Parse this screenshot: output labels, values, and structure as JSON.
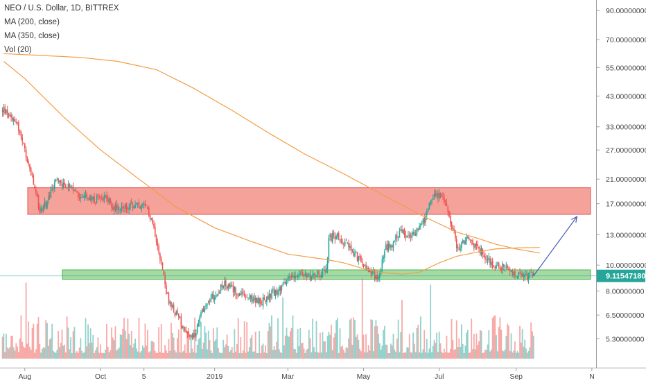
{
  "legend": {
    "title": "NEO / U.S. Dollar, 1D, BITTREX",
    "ma200": "MA (200, close)",
    "ma350": "MA (350, close)",
    "vol": "Vol (20)"
  },
  "colors": {
    "up": "#26a69a",
    "down": "#ef5350",
    "ma": "#f39c45",
    "resistance_fill": "#f28b82",
    "support_fill": "#8fd18b",
    "arrow": "#4a5bb3",
    "last_price_bg": "#26a69a"
  },
  "chart_data": {
    "type": "candlestick",
    "symbol": "NEO / U.S. Dollar",
    "timeframe": "1D",
    "exchange": "BITTREX",
    "y_scale": "log",
    "ylim": [
      4.6,
      95
    ],
    "price_ticks": [
      "90.00000000",
      "70.00000000",
      "55.00000000",
      "43.00000000",
      "33.00000000",
      "27.00000000",
      "21.00000000",
      "17.00000000",
      "13.00000000",
      "10.00000000",
      "8.00000000",
      "6.50000000",
      "5.30000000"
    ],
    "date_ticks": [
      "Aug",
      "Oct",
      "5",
      "2019",
      "Mar",
      "May",
      "Jul",
      "Sep",
      "N"
    ],
    "last_price": "9.11547180",
    "zones": [
      {
        "name": "resistance",
        "low": 15.5,
        "high": 19.5
      },
      {
        "name": "support",
        "low": 8.85,
        "high": 9.6
      }
    ],
    "anchor_closes": [
      [
        "2018-07-15",
        38
      ],
      [
        "2018-07-25",
        35
      ],
      [
        "2018-08-06",
        22
      ],
      [
        "2018-08-13",
        16
      ],
      [
        "2018-08-18",
        17
      ],
      [
        "2018-08-27",
        21
      ],
      [
        "2018-09-08",
        19
      ],
      [
        "2018-09-25",
        17.5
      ],
      [
        "2018-10-05",
        18.2
      ],
      [
        "2018-10-11",
        16.5
      ],
      [
        "2018-10-20",
        16.4
      ],
      [
        "2018-10-31",
        16.7
      ],
      [
        "2018-11-08",
        16.2
      ],
      [
        "2018-11-12",
        14.5
      ],
      [
        "2018-11-17",
        11.5
      ],
      [
        "2018-11-22",
        8.5
      ],
      [
        "2018-11-25",
        7.2
      ],
      [
        "2018-12-06",
        6.0
      ],
      [
        "2018-12-14",
        5.2
      ],
      [
        "2018-12-22",
        6.8
      ],
      [
        "2018-12-29",
        7.5
      ],
      [
        "2019-01-08",
        8.5
      ],
      [
        "2019-01-28",
        7.5
      ],
      [
        "2019-02-08",
        7.3
      ],
      [
        "2019-02-24",
        8.3
      ],
      [
        "2019-03-05",
        9.3
      ],
      [
        "2019-03-19",
        9.1
      ],
      [
        "2019-04-01",
        9.5
      ],
      [
        "2019-04-03",
        12.5
      ],
      [
        "2019-04-10",
        13.0
      ],
      [
        "2019-04-21",
        11.5
      ],
      [
        "2019-04-27",
        10.5
      ],
      [
        "2019-05-08",
        9.3
      ],
      [
        "2019-05-13",
        9.0
      ],
      [
        "2019-05-18",
        11.5
      ],
      [
        "2019-05-24",
        12.0
      ],
      [
        "2019-06-01",
        13.5
      ],
      [
        "2019-06-05",
        12.5
      ],
      [
        "2019-06-12",
        13.5
      ],
      [
        "2019-06-20",
        15.0
      ],
      [
        "2019-06-25",
        18.0
      ],
      [
        "2019-07-02",
        18.5
      ],
      [
        "2019-07-08",
        16.0
      ],
      [
        "2019-07-16",
        11.5
      ],
      [
        "2019-07-23",
        12.5
      ],
      [
        "2019-07-31",
        11.7
      ],
      [
        "2019-08-06",
        11.0
      ],
      [
        "2019-08-13",
        10.0
      ],
      [
        "2019-08-22",
        9.8
      ],
      [
        "2019-08-30",
        9.2
      ],
      [
        "2019-09-06",
        9.0
      ],
      [
        "2019-09-15",
        9.12
      ]
    ],
    "ma200": [
      [
        "2018-07-15",
        58
      ],
      [
        "2018-08-01",
        50
      ],
      [
        "2018-09-01",
        36
      ],
      [
        "2018-10-01",
        27
      ],
      [
        "2018-11-01",
        21
      ],
      [
        "2018-12-01",
        16.5
      ],
      [
        "2019-01-01",
        13.8
      ],
      [
        "2019-02-01",
        12.2
      ],
      [
        "2019-03-01",
        11.0
      ],
      [
        "2019-04-01",
        10.5
      ],
      [
        "2019-04-15",
        10.2
      ],
      [
        "2019-05-01",
        9.7
      ],
      [
        "2019-05-15",
        9.4
      ],
      [
        "2019-06-01",
        9.25
      ],
      [
        "2019-06-15",
        9.4
      ],
      [
        "2019-07-01",
        10.2
      ],
      [
        "2019-07-15",
        10.8
      ],
      [
        "2019-08-01",
        11.2
      ],
      [
        "2019-08-15",
        11.5
      ],
      [
        "2019-09-01",
        11.6
      ],
      [
        "2019-09-20",
        11.65
      ]
    ],
    "ma350": [
      [
        "2018-07-15",
        62
      ],
      [
        "2018-08-15",
        61
      ],
      [
        "2018-09-15",
        60
      ],
      [
        "2018-10-15",
        58
      ],
      [
        "2018-11-15",
        54
      ],
      [
        "2018-12-15",
        46
      ],
      [
        "2019-01-15",
        38
      ],
      [
        "2019-02-15",
        31
      ],
      [
        "2019-03-15",
        26
      ],
      [
        "2019-04-15",
        22
      ],
      [
        "2019-05-15",
        18.5
      ],
      [
        "2019-06-15",
        15.5
      ],
      [
        "2019-07-15",
        13.3
      ],
      [
        "2019-08-01",
        12.6
      ],
      [
        "2019-08-15",
        12.0
      ],
      [
        "2019-09-01",
        11.5
      ],
      [
        "2019-09-20",
        11.1
      ]
    ],
    "projection": {
      "from": [
        "2019-09-15",
        9.12
      ],
      "to": [
        "2019-10-20",
        15.2
      ]
    }
  }
}
